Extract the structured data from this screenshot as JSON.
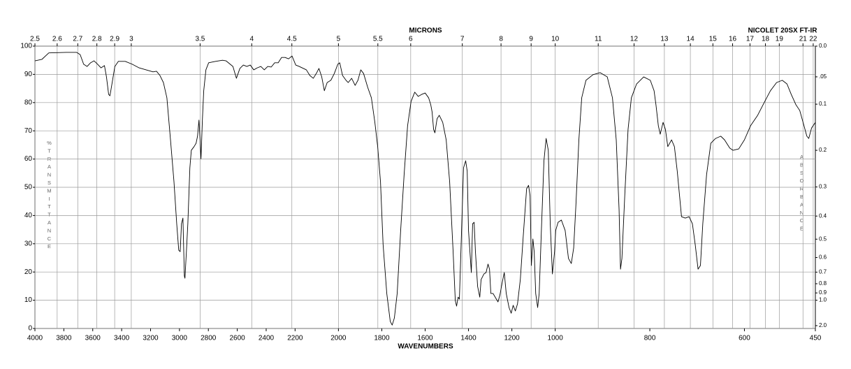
{
  "chart_data": {
    "type": "line",
    "instrument": "NICOLET 20SX FT-IR",
    "x_label": "WAVENUMBERS",
    "x2_label": "MICRONS",
    "y_label": "%TRANSMITTANCE",
    "y2_label": "ABSORBANCE",
    "color": "#000000",
    "grid": true,
    "xlim": [
      4000,
      450
    ],
    "x_scale_breaks": [
      2200,
      1000
    ],
    "ylim": [
      0,
      100
    ],
    "xticks": [
      4000,
      3800,
      3600,
      3400,
      3200,
      3000,
      2800,
      2600,
      2400,
      2200,
      2000,
      1800,
      1600,
      1400,
      1200,
      1000,
      800,
      600,
      450
    ],
    "yticks": [
      0,
      10,
      20,
      30,
      40,
      50,
      60,
      70,
      80,
      90,
      100
    ],
    "x2ticks": [
      2.5,
      2.6,
      2.7,
      2.8,
      2.9,
      3,
      3.5,
      4,
      4.5,
      5,
      5.5,
      6,
      7,
      8,
      9,
      10,
      11,
      12,
      13,
      14,
      15,
      16,
      17,
      18,
      19,
      21,
      22
    ],
    "y2ticks": [
      {
        "value": 0,
        "label": "0.0"
      },
      {
        "value": 0.05,
        "label": ".05"
      },
      0.1,
      0.2,
      0.3,
      0.4,
      0.5,
      0.6,
      0.7,
      0.8,
      0.9,
      {
        "value": 1,
        "label": "1.0"
      },
      {
        "value": 2,
        "label": "2.0"
      }
    ],
    "x": [
      4000,
      3952,
      3904,
      3784,
      3712,
      3687,
      3663,
      3639,
      3615,
      3591,
      3567,
      3543,
      3519,
      3505,
      3490,
      3481,
      3471,
      3447,
      3423,
      3375,
      3327,
      3279,
      3231,
      3183,
      3159,
      3135,
      3111,
      3087,
      3062,
      3038,
      3019,
      3005,
      2995,
      2986,
      2976,
      2966,
      2962,
      2952,
      2942,
      2928,
      2918,
      2899,
      2885,
      2875,
      2865,
      2856,
      2851,
      2841,
      2832,
      2817,
      2798,
      2750,
      2702,
      2678,
      2630,
      2606,
      2582,
      2558,
      2534,
      2510,
      2486,
      2462,
      2437,
      2413,
      2389,
      2365,
      2341,
      2317,
      2293,
      2269,
      2245,
      2221,
      2197,
      2181,
      2148,
      2132,
      2116,
      2100,
      2090,
      2077,
      2065,
      2052,
      2035,
      2019,
      2003,
      1994,
      1981,
      1965,
      1955,
      1939,
      1923,
      1910,
      1897,
      1884,
      1865,
      1848,
      1832,
      1819,
      1806,
      1794,
      1777,
      1761,
      1752,
      1742,
      1729,
      1713,
      1697,
      1681,
      1665,
      1648,
      1632,
      1616,
      1600,
      1584,
      1574,
      1568,
      1561,
      1555,
      1545,
      1535,
      1519,
      1503,
      1487,
      1471,
      1461,
      1455,
      1448,
      1442,
      1432,
      1423,
      1413,
      1406,
      1400,
      1387,
      1381,
      1374,
      1368,
      1358,
      1348,
      1342,
      1329,
      1319,
      1310,
      1303,
      1297,
      1287,
      1277,
      1264,
      1255,
      1245,
      1235,
      1226,
      1213,
      1203,
      1194,
      1184,
      1174,
      1161,
      1148,
      1132,
      1123,
      1116,
      1110,
      1103,
      1097,
      1090,
      1081,
      1074,
      1065,
      1052,
      1042,
      1032,
      1023,
      1013,
      1003,
      999,
      994,
      987,
      979,
      972,
      966,
      961,
      956,
      950,
      944,
      935,
      920,
      905,
      890,
      879,
      871,
      865,
      862,
      859,
      853,
      846,
      839,
      828,
      813,
      799,
      791,
      787,
      782,
      778,
      772,
      767,
      762,
      754,
      748,
      742,
      733,
      725,
      717,
      710,
      704,
      698,
      693,
      688,
      680,
      671,
      661,
      650,
      642,
      631,
      624,
      612,
      600,
      587,
      572,
      557,
      545,
      532,
      520,
      510,
      501,
      491,
      483,
      476,
      468,
      464,
      458,
      450
    ],
    "values": [
      94.8,
      95.3,
      97.6,
      97.8,
      97.8,
      97.0,
      93.6,
      92.8,
      94.1,
      94.8,
      93.6,
      92.3,
      93.1,
      89.1,
      82.9,
      82.4,
      85.4,
      92.8,
      94.6,
      94.6,
      93.6,
      92.3,
      91.6,
      90.9,
      91.1,
      89.6,
      87.1,
      81.7,
      66.8,
      52.0,
      37.1,
      27.7,
      27.2,
      37.1,
      39.1,
      18.6,
      17.8,
      27.2,
      37.1,
      56.9,
      63.1,
      64.4,
      65.6,
      68.1,
      73.8,
      65.6,
      60.1,
      74.3,
      84.2,
      91.6,
      94.1,
      94.6,
      95.0,
      94.8,
      92.8,
      88.6,
      92.1,
      93.3,
      92.8,
      93.3,
      91.6,
      92.3,
      92.8,
      91.6,
      92.8,
      92.6,
      94.1,
      94.1,
      96.0,
      96.0,
      95.5,
      96.5,
      93.3,
      92.8,
      91.6,
      89.6,
      88.6,
      90.6,
      92.1,
      89.1,
      84.2,
      87.1,
      87.9,
      90.3,
      93.6,
      94.1,
      89.6,
      87.9,
      87.1,
      88.6,
      86.1,
      87.9,
      91.6,
      90.3,
      85.4,
      81.7,
      73.0,
      64.4,
      52.0,
      29.7,
      12.4,
      2.5,
      1.2,
      3.7,
      12.4,
      34.7,
      54.5,
      71.8,
      80.4,
      83.7,
      82.2,
      82.9,
      83.4,
      81.7,
      79.2,
      76.7,
      70.5,
      69.3,
      74.3,
      75.5,
      73.0,
      66.8,
      52.0,
      27.2,
      9.9,
      7.9,
      11.1,
      10.4,
      34.7,
      56.9,
      59.4,
      55.7,
      34.7,
      19.8,
      37.1,
      37.6,
      27.2,
      14.9,
      11.1,
      17.3,
      19.3,
      19.8,
      22.8,
      21.0,
      12.4,
      12.4,
      11.1,
      9.4,
      11.9,
      16.1,
      19.8,
      12.4,
      7.4,
      5.4,
      8.2,
      6.2,
      8.7,
      17.3,
      32.2,
      49.5,
      50.7,
      47.0,
      22.3,
      31.7,
      27.2,
      12.4,
      7.4,
      12.4,
      32.2,
      59.4,
      67.3,
      63.1,
      37.1,
      19.3,
      27.2,
      34.7,
      37.6,
      38.4,
      34.7,
      24.8,
      23.0,
      28.5,
      44.6,
      66.8,
      81.7,
      87.9,
      89.9,
      90.6,
      89.1,
      81.7,
      66.8,
      42.1,
      21.0,
      24.8,
      47.0,
      70.5,
      81.7,
      86.6,
      89.1,
      87.9,
      84.2,
      79.2,
      71.8,
      68.8,
      73.0,
      70.5,
      64.4,
      66.8,
      64.4,
      55.7,
      39.6,
      39.1,
      39.6,
      37.1,
      29.7,
      21.0,
      22.3,
      37.1,
      54.5,
      65.6,
      67.3,
      68.1,
      66.8,
      63.9,
      63.1,
      63.6,
      66.8,
      71.8,
      75.5,
      80.4,
      84.2,
      87.1,
      87.9,
      86.6,
      82.9,
      79.2,
      77.2,
      73.0,
      68.1,
      67.3,
      71.0,
      73.0
    ]
  }
}
